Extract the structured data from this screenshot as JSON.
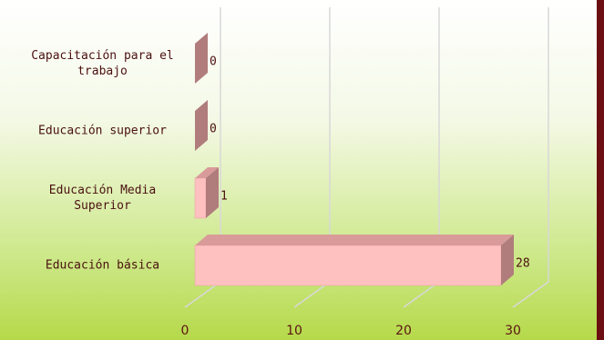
{
  "chart_data": {
    "type": "bar3d",
    "categories": [
      "Capacitación para el trabajo",
      "Educación superior",
      "Educación Media Superior",
      "Educación básica"
    ],
    "values": [
      0,
      0,
      1,
      28
    ],
    "color": "#ffc0c0",
    "xlim": [
      0,
      30
    ],
    "xticks": [
      0,
      10,
      20,
      30
    ],
    "grid": true
  }
}
